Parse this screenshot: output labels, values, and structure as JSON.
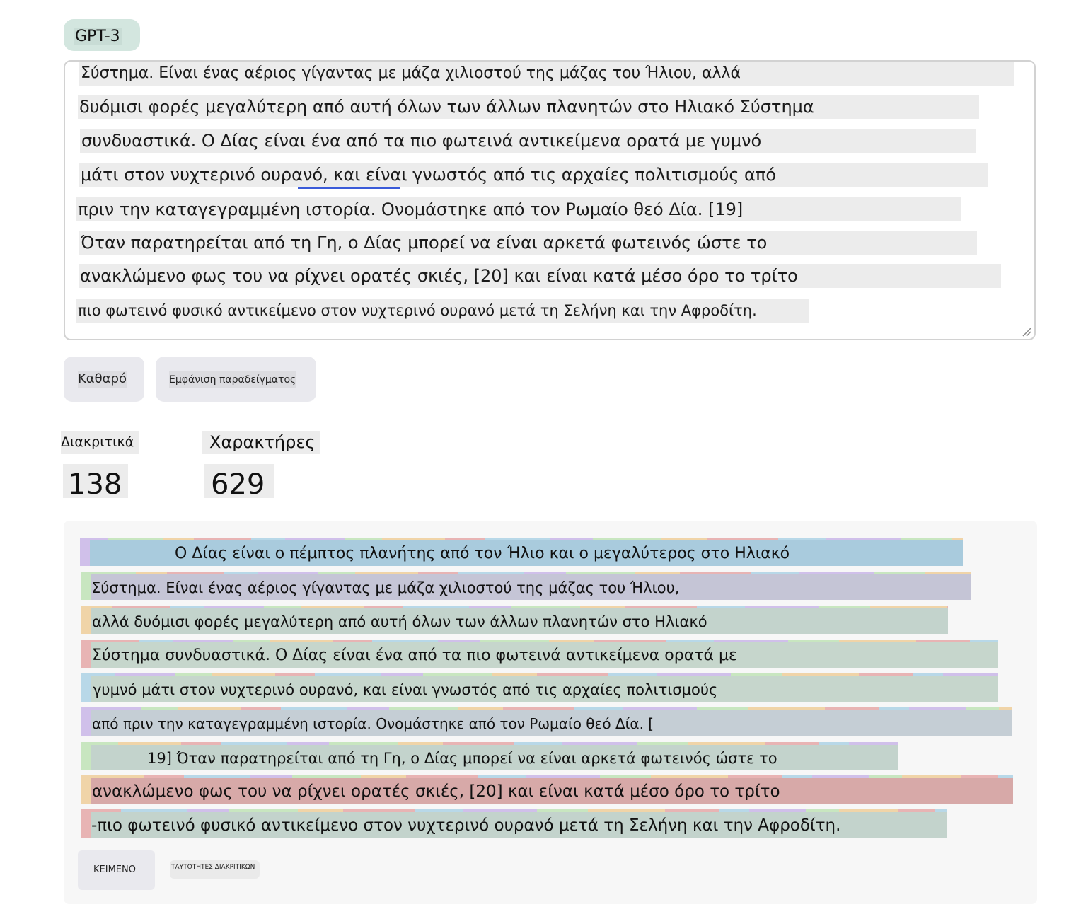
{
  "model_tab": {
    "label": "GPT-3"
  },
  "input": {
    "lines": [
      "Σύστημα. Είναι ένας αέριος γίγαντας με μάζα χιλιοστού της μάζας του Ήλιου, αλλά",
      "δυόμισι φορές μεγαλύτερη από αυτή όλων των άλλων πλανητών στο Ηλιακό Σύστημα",
      "συνδυαστικά. Ο Δίας είναι ένα από τα πιο φωτεινά αντικείμενα ορατά με γυμνό",
      "μάτι στον νυχτερινό ουρανό, και είναι γνωστός από τις αρχαίες πολιτισμούς από",
      "πριν την καταγεγραμμένη ιστορία. Ονομάστηκε από τον Ρωμαίο θεό Δία. [19]",
      "Όταν παρατηρείται από τη Γη, ο Δίας μπορεί να είναι αρκετά φωτεινός ώστε το",
      "ανακλώμενο φως του να ρίχνει ορατές σκιές, [20] και είναι κατά μέσο όρο το τρίτο",
      "πιο φωτεινό φυσικό αντικείμενο στον νυχτερινό ουρανό μετά τη Σελήνη και την Αφροδίτη."
    ]
  },
  "buttons": {
    "clear": "Καθαρό",
    "show_example": "Εμφάνιση παραδείγματος"
  },
  "stats": {
    "tokens_label": "Διακριτικά",
    "tokens_value": "138",
    "chars_label": "Χαρακτήρες",
    "chars_value": "629"
  },
  "tokenized": {
    "lines": [
      "Ο Δίας είναι ο πέμπτος πλανήτης από τον Ήλιο και ο μεγαλύτερος στο Ηλιακό",
      "Σύστημα. Είναι ένας αέριος γίγαντας με μάζα χιλιοστού της μάζας του Ήλιου,",
      "αλλά δυόμισι φορές μεγαλύτερη από αυτή όλων των άλλων πλανητών στο Ηλιακό",
      "Σύστημα συνδυαστικά. Ο Δίας είναι ένα από τα πιο φωτεινά αντικείμενα ορατά με",
      "γυμνό μάτι στον νυχτερινό ουρανό, και είναι γνωστός από τις αρχαίες πολιτισμούς",
      "από πριν την καταγεγραμμένη ιστορία. Ονομάστηκε από τον Ρωμαίο θεό Δία. [",
      "19] Όταν παρατηρείται από τη Γη, ο Δίας μπορεί να είναι αρκετά φωτεινός ώστε το",
      "ανακλώμενο φως του να ρίχνει ορατές σκιές, [20] και είναι κατά μέσο όρο το τρίτο",
      "-πιο φωτεινό φυσικό αντικείμενο στον νυχτερινό ουρανό μετά τη Σελήνη και την Αφροδίτη."
    ],
    "line_colors": [
      "#a9cbdd",
      "#c5c5d6",
      "#c3d3cc",
      "#c6d6cc",
      "#c6d6cc",
      "#c5ced5",
      "#c3d3cc",
      "#d7a9a8",
      "#c3d3cc"
    ],
    "token_palette": [
      "#d0c0ea",
      "#c8e6c0",
      "#f0d4a8",
      "#e8b4b4",
      "#b8d8e8"
    ]
  },
  "view_toggle": {
    "text": "ΚΕΙΜΕΝΟ",
    "token_ids": "ΤΑΥΤΟΤΗΤΕΣ ΔΙΑΚΡΙΤΙΚΩΝ"
  }
}
